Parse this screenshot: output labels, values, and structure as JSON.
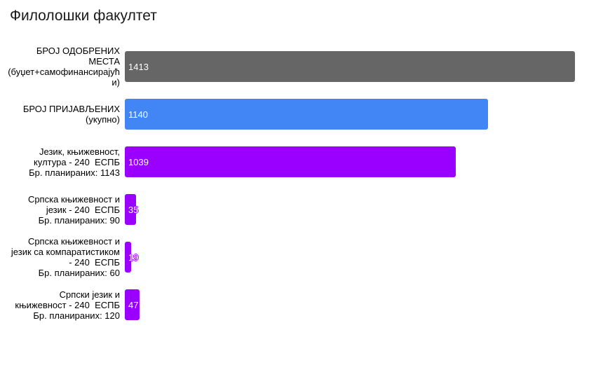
{
  "chart_data": {
    "type": "bar",
    "orientation": "horizontal",
    "title": "Филолошки факултет",
    "xlabel": "",
    "ylabel": "",
    "xlim": [
      0,
      1413
    ],
    "grid": false,
    "legend": "none",
    "value_label_position": "inside-start",
    "colors": {
      "background": "#ffffff",
      "title_text": "#1a1a1a",
      "category_label_text": "#000000",
      "value_label_text": "#ffffff",
      "approved_bar": "#666666",
      "applied_bar": "#4285f4",
      "program_bar": "#9900ff"
    },
    "bars": [
      {
        "label": "БРОЈ ОДОБРЕНИХ МЕСТА (буџет+самофинансирајући)",
        "label_lines": "БРОЈ ОДОБРЕНИХ\nМЕСТА\n(буџет+самофинансирајућ\nи)",
        "value": 1413,
        "value_label": "1413",
        "color": "#666666"
      },
      {
        "label": "БРОЈ ПРИЈАВЉЕНИХ (укупно)",
        "label_lines": "БРОЈ ПРИЈАВЉЕНИХ\n(укупно)",
        "value": 1140,
        "value_label": "1140",
        "color": "#4285f4"
      },
      {
        "label": "Језик, књижевност, култура - 240 ЕСПБ Бр. планираних: 1143",
        "label_lines": "Језик, књижевност,\nкултура - 240  ЕСПБ\nБр. планираних: 1143",
        "value": 1039,
        "value_label": "1039",
        "color": "#9900ff"
      },
      {
        "label": "Српска књижевност и језик - 240 ЕСПБ Бр. планираних: 90",
        "label_lines": "Српска књижевност и\nјезик - 240  ЕСПБ\nБр. планираних: 90",
        "value": 35,
        "value_label": "35",
        "color": "#9900ff"
      },
      {
        "label": "Српска књижевност и језик са компаратистиком - 240 ЕСПБ Бр. планираних: 60",
        "label_lines": "Српска књижевност и\nјезик са компаратистиком\n- 240  ЕСПБ\nБр. планираних: 60",
        "value": 19,
        "value_label": "19",
        "color": "#9900ff"
      },
      {
        "label": "Српски језик и књижевност - 240 ЕСПБ Бр. планираних: 120",
        "label_lines": "Српски језик и\nкњижевност - 240  ЕСПБ\nБр. планираних: 120",
        "value": 47,
        "value_label": "47",
        "color": "#9900ff"
      }
    ]
  }
}
